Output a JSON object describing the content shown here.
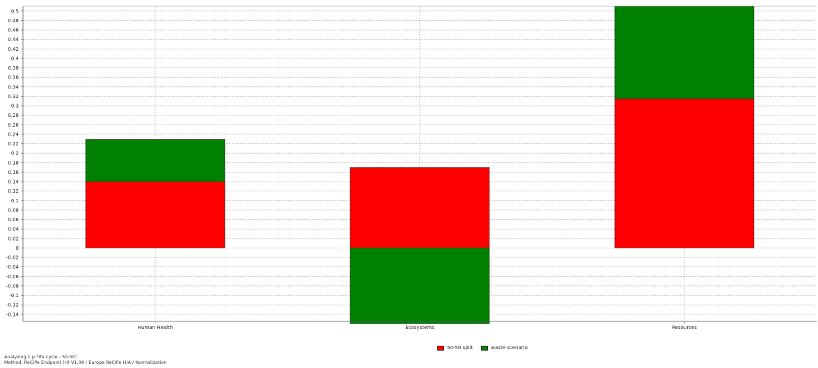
{
  "chart_data": {
    "type": "bar",
    "stacked": true,
    "categories": [
      "Human Health",
      "Ecosystems",
      "Resources"
    ],
    "series": [
      {
        "name": "50-50 split",
        "color": "#ff0000",
        "values": [
          0.14,
          0.17,
          0.315
        ]
      },
      {
        "name": "waste scenario",
        "color": "#008000",
        "values": [
          0.089,
          -0.16,
          0.195
        ]
      }
    ],
    "ylim": [
      -0.155,
      0.51
    ],
    "yticks": [
      0.5,
      0.48,
      0.46,
      0.44,
      0.42,
      0.4,
      0.38,
      0.36,
      0.34,
      0.32,
      0.3,
      0.28,
      0.26,
      0.24,
      0.22,
      0.2,
      0.18,
      0.16,
      0.14,
      0.12,
      0.1,
      0.08,
      0.06,
      0.04,
      0.02,
      0,
      -0.02,
      -0.04,
      -0.06,
      -0.08,
      -0.1,
      -0.12,
      -0.14
    ],
    "grid": true,
    "legend_position": "bottom-center"
  },
  "footer": {
    "line1": "Analyzing 1 p 'life cycle - 50-50';",
    "line2": "Method: ReCiPe Endpoint (H) V1.08 / Europe ReCiPe H/A / Normalization"
  }
}
